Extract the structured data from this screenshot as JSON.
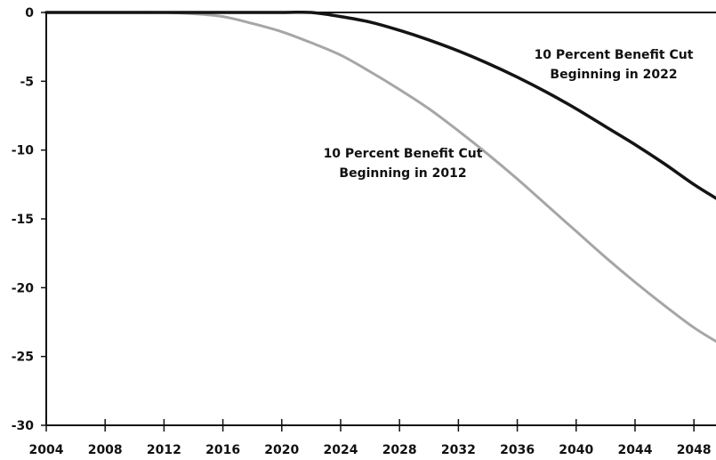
{
  "chart_data": {
    "type": "line",
    "title": "",
    "xlabel": "",
    "ylabel": "",
    "xlim": [
      2004,
      2049.5
    ],
    "ylim": [
      -30,
      0
    ],
    "x_ticks": [
      2004,
      2008,
      2012,
      2016,
      2020,
      2024,
      2028,
      2032,
      2036,
      2040,
      2044,
      2048
    ],
    "y_ticks": [
      0,
      -5,
      -10,
      -15,
      -20,
      -25,
      -30
    ],
    "grid": false,
    "legend": "none",
    "series": [
      {
        "name": "10 Percent Benefit Cut Beginning in 2012",
        "color": "#a6a6a6",
        "x": [
          2004,
          2008,
          2012,
          2014,
          2016,
          2018,
          2020,
          2022,
          2024,
          2026,
          2028,
          2030,
          2032,
          2034,
          2036,
          2038,
          2040,
          2042,
          2044,
          2046,
          2048,
          2049.5
        ],
        "y": [
          0,
          0,
          0,
          -0.1,
          -0.3,
          -0.8,
          -1.4,
          -2.2,
          -3.1,
          -4.3,
          -5.6,
          -7.0,
          -8.6,
          -10.3,
          -12.1,
          -14.0,
          -15.9,
          -17.8,
          -19.6,
          -21.3,
          -22.9,
          -23.9
        ]
      },
      {
        "name": "10 Percent Benefit Cut Beginning in 2022",
        "color": "#141414",
        "x": [
          2004,
          2008,
          2012,
          2016,
          2020,
          2022,
          2024,
          2026,
          2028,
          2030,
          2032,
          2034,
          2036,
          2038,
          2040,
          2042,
          2044,
          2046,
          2048,
          2049.5
        ],
        "y": [
          0,
          0,
          0,
          0,
          0,
          0,
          -0.3,
          -0.7,
          -1.3,
          -2.0,
          -2.8,
          -3.7,
          -4.7,
          -5.8,
          -7.0,
          -8.3,
          -9.6,
          -11.0,
          -12.5,
          -13.5
        ]
      }
    ],
    "annotations": [
      {
        "lines": [
          "10 Percent Benefit Cut",
          "Beginning in 2022"
        ],
        "series_index": 1
      },
      {
        "lines": [
          "10 Percent Benefit Cut",
          "Beginning in 2012"
        ],
        "series_index": 0
      }
    ]
  }
}
